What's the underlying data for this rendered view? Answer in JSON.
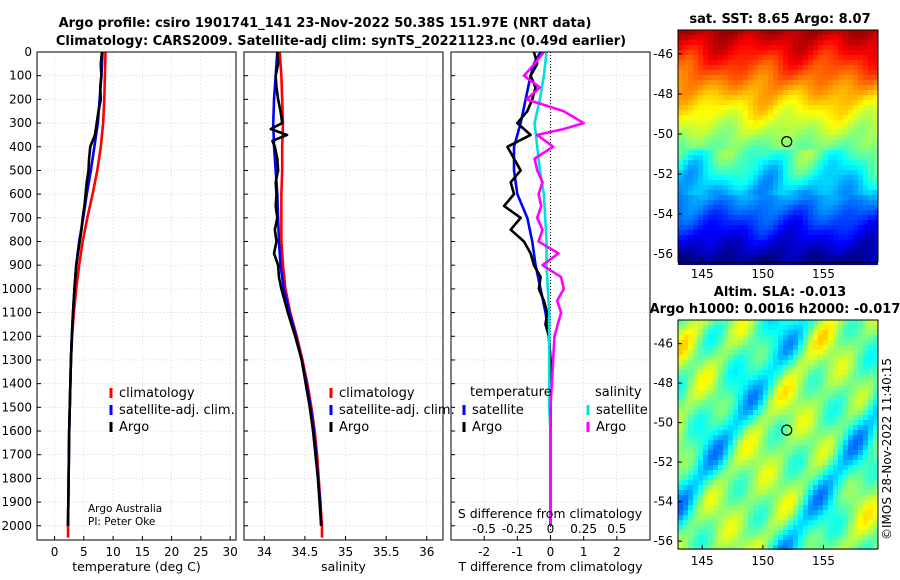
{
  "title_line1": "Argo profile: csiro 1901741_141 23-Nov-2022 50.38S 151.97E (NRT data)",
  "title_line2": "Climatology: CARS2009. Satellite-adj clim: synTS_20221123.nc (0.49d earlier)",
  "credit_org": "Argo Australia",
  "credit_pi": "PI: Peter Oke",
  "watermark": "©IMOS 28-Nov-2022 11:40:15",
  "colors": {
    "climatology": "#ff0000",
    "satellite": "#0000ff",
    "argo": "#000000",
    "sal_satellite": "#00e0e0",
    "sal_argo": "#ff00ff"
  },
  "chart_data": [
    {
      "id": "temperature",
      "type": "line",
      "xlabel": "temperature (deg C)",
      "ylabel": "",
      "xlim": [
        -3,
        31
      ],
      "ylim": [
        2060,
        0
      ],
      "x_ticks": [
        0,
        5,
        10,
        15,
        20,
        25,
        30
      ],
      "x_tick_labels": [
        "0",
        "5",
        "10",
        "15",
        "20",
        "25",
        "30"
      ],
      "y_ticks": [
        0,
        100,
        200,
        300,
        400,
        500,
        600,
        700,
        800,
        900,
        1000,
        1100,
        1200,
        1300,
        1400,
        1500,
        1600,
        1700,
        1800,
        1900,
        2000
      ],
      "y_tick_labels": [
        "0",
        "100",
        "200",
        "300",
        "400",
        "500",
        "600",
        "700",
        "800",
        "900",
        "1000",
        "1100",
        "1200",
        "1300",
        "1400",
        "1500",
        "1600",
        "1700",
        "1800",
        "1900",
        "2000"
      ],
      "legend": [
        "climatology",
        "satellite-adj. clim.",
        "Argo"
      ],
      "series": [
        {
          "name": "climatology",
          "color": "#ff0000",
          "depth": [
            0,
            100,
            200,
            300,
            400,
            500,
            600,
            700,
            800,
            900,
            1000,
            1100,
            1200,
            1300,
            1400,
            1500,
            1600,
            1700,
            1800,
            1900,
            2000,
            2050
          ],
          "values": [
            8.7,
            8.6,
            8.5,
            8.3,
            7.9,
            7.3,
            6.5,
            5.6,
            4.8,
            4.2,
            3.7,
            3.3,
            3.0,
            2.8,
            2.7,
            2.6,
            2.5,
            2.45,
            2.4,
            2.35,
            2.3,
            2.3
          ]
        },
        {
          "name": "satellite-adj. clim.",
          "color": "#0000ff",
          "depth": [
            0,
            100,
            200,
            300,
            400,
            500,
            600,
            700,
            800,
            900,
            1000,
            1100,
            1200,
            1300,
            1400,
            1500,
            1600,
            1700,
            1800,
            1900,
            2000
          ],
          "values": [
            8.2,
            8.0,
            7.7,
            7.4,
            6.8,
            6.2,
            5.5,
            4.9,
            4.2,
            3.7,
            3.4,
            3.15,
            2.95,
            2.8,
            2.7,
            2.6,
            2.5,
            2.45,
            2.4,
            2.35,
            2.3
          ]
        },
        {
          "name": "Argo",
          "color": "#000000",
          "depth": [
            0,
            50,
            100,
            150,
            200,
            250,
            300,
            350,
            400,
            450,
            500,
            550,
            600,
            650,
            700,
            750,
            800,
            850,
            900,
            950,
            1000,
            1100,
            1200,
            1300,
            1400,
            1500,
            1600,
            1700,
            1800,
            1900,
            2000
          ],
          "values": [
            8.1,
            7.9,
            8.0,
            7.8,
            7.9,
            7.5,
            7.2,
            6.9,
            6.1,
            5.9,
            5.8,
            5.5,
            5.3,
            5.1,
            4.8,
            4.6,
            4.3,
            4.0,
            3.7,
            3.55,
            3.4,
            3.15,
            2.95,
            2.8,
            2.7,
            2.6,
            2.5,
            2.45,
            2.4,
            2.35,
            2.3
          ]
        }
      ]
    },
    {
      "id": "salinity",
      "type": "line",
      "xlabel": "salinity",
      "xlim": [
        33.75,
        36.2
      ],
      "ylim": [
        2060,
        0
      ],
      "x_ticks": [
        34,
        34.5,
        35,
        35.5,
        36
      ],
      "x_tick_labels": [
        "34",
        "34.5",
        "35",
        "35.5",
        "36"
      ],
      "legend": [
        "climatology",
        "satellite-adj. clim.",
        "Argo"
      ],
      "series": [
        {
          "name": "climatology",
          "color": "#ff0000",
          "depth": [
            0,
            100,
            200,
            300,
            400,
            500,
            600,
            700,
            800,
            900,
            1000,
            1100,
            1200,
            1300,
            1400,
            1500,
            1600,
            1700,
            1800,
            1900,
            2000,
            2050
          ],
          "values": [
            34.19,
            34.21,
            34.22,
            34.23,
            34.22,
            34.22,
            34.21,
            34.21,
            34.21,
            34.23,
            34.26,
            34.32,
            34.4,
            34.47,
            34.53,
            34.58,
            34.62,
            34.65,
            34.67,
            34.69,
            34.71,
            34.71
          ]
        },
        {
          "name": "satellite-adj. clim.",
          "color": "#0000ff",
          "depth": [
            0,
            100,
            200,
            300,
            400,
            500,
            600,
            700,
            800,
            900,
            1000,
            1100,
            1200,
            1300,
            1400,
            1500,
            1600,
            1700,
            1800,
            1900,
            2000
          ],
          "values": [
            34.16,
            34.14,
            34.12,
            34.11,
            34.12,
            34.14,
            34.16,
            34.17,
            34.18,
            34.2,
            34.24,
            34.31,
            34.39,
            34.46,
            34.52,
            34.57,
            34.61,
            34.64,
            34.66,
            34.69,
            34.7
          ]
        },
        {
          "name": "Argo",
          "color": "#000000",
          "depth": [
            0,
            50,
            100,
            150,
            200,
            250,
            300,
            325,
            350,
            375,
            400,
            450,
            500,
            550,
            600,
            650,
            700,
            750,
            800,
            850,
            900,
            950,
            1000,
            1100,
            1200,
            1300,
            1400,
            1500,
            1600,
            1700,
            1800,
            1900,
            2000
          ],
          "values": [
            34.16,
            34.17,
            34.14,
            34.15,
            34.17,
            34.2,
            34.22,
            34.08,
            34.28,
            34.1,
            34.13,
            34.16,
            34.17,
            34.14,
            34.15,
            34.14,
            34.16,
            34.13,
            34.15,
            34.12,
            34.17,
            34.18,
            34.21,
            34.29,
            34.38,
            34.46,
            34.51,
            34.56,
            34.6,
            34.63,
            34.66,
            34.68,
            34.7
          ]
        }
      ]
    },
    {
      "id": "difference",
      "type": "line",
      "xlabel": "T difference from climatology",
      "xlabel_top": "S difference from climatology",
      "xlim": [
        -3,
        3
      ],
      "ylim": [
        2060,
        0
      ],
      "x_ticks": [
        -2,
        -1,
        0,
        1,
        2
      ],
      "x_tick_labels": [
        "-2",
        "-1",
        "0",
        "1",
        "2"
      ],
      "s_ticks": [
        -0.5,
        -0.25,
        0,
        0.25,
        0.5
      ],
      "s_tick_labels": [
        "-0.5",
        "-0.25",
        "0",
        "0.25",
        "0.5"
      ],
      "legend_titles": [
        "temperature",
        "salinity"
      ],
      "legend_temp": [
        "satellite",
        "Argo"
      ],
      "legend_sal": [
        "satellite",
        "Argo"
      ],
      "series": [
        {
          "name": "T satellite",
          "color": "#0000ff",
          "depth": [
            0,
            50,
            100,
            200,
            300,
            400,
            500,
            600,
            700,
            800,
            900,
            1000,
            1100,
            1200,
            1300,
            1400,
            1500,
            1600,
            1700,
            1800,
            1900,
            2000
          ],
          "values": [
            -0.3,
            -0.5,
            -0.6,
            -0.75,
            -0.9,
            -1.1,
            -1.1,
            -1.0,
            -0.7,
            -0.55,
            -0.45,
            -0.3,
            -0.15,
            -0.05,
            0,
            0,
            0,
            0,
            0,
            0,
            0,
            0
          ]
        },
        {
          "name": "T Argo",
          "color": "#000000",
          "depth": [
            0,
            50,
            100,
            150,
            200,
            250,
            300,
            350,
            400,
            450,
            500,
            550,
            600,
            650,
            700,
            750,
            800,
            850,
            900,
            950,
            1000,
            1050,
            1100,
            1150,
            1200,
            1300,
            1400,
            1500,
            1600,
            1700,
            1800,
            1900,
            2000
          ],
          "values": [
            -0.5,
            -0.4,
            -0.6,
            -0.45,
            -0.55,
            -0.7,
            -1.0,
            -0.6,
            -1.3,
            -1.1,
            -0.9,
            -1.2,
            -1.1,
            -1.4,
            -0.9,
            -1.2,
            -0.8,
            -0.6,
            -0.5,
            -0.3,
            -0.35,
            -0.2,
            -0.1,
            -0.15,
            -0.05,
            0,
            0,
            0,
            0,
            0,
            0,
            0,
            0
          ]
        },
        {
          "name": "S satellite",
          "color": "#00e0e0",
          "depth": [
            0,
            100,
            200,
            300,
            400,
            500,
            600,
            700,
            800,
            900,
            1000,
            1100,
            1200,
            1300,
            1400,
            1500,
            1600,
            1700,
            1800,
            1900,
            2000
          ],
          "values": [
            -0.03,
            -0.05,
            -0.08,
            -0.12,
            -0.1,
            -0.08,
            -0.05,
            -0.04,
            -0.03,
            -0.03,
            -0.02,
            -0.01,
            -0.01,
            -0.01,
            -0.01,
            -0.01,
            0,
            0,
            0,
            0,
            0
          ]
        },
        {
          "name": "S Argo",
          "color": "#ff00ff",
          "depth": [
            0,
            50,
            100,
            150,
            200,
            250,
            300,
            325,
            350,
            400,
            450,
            500,
            550,
            600,
            650,
            700,
            750,
            800,
            850,
            900,
            950,
            1000,
            1050,
            1100,
            1200,
            1300,
            1400,
            1500,
            1600,
            1700,
            1800,
            1900,
            2000
          ],
          "values": [
            -0.05,
            -0.12,
            -0.2,
            -0.08,
            -0.18,
            0.1,
            0.25,
            0.1,
            -0.1,
            0.02,
            -0.12,
            -0.1,
            -0.06,
            -0.09,
            -0.07,
            -0.1,
            -0.06,
            -0.09,
            0.06,
            -0.06,
            0.08,
            0.1,
            0.05,
            0.08,
            0.03,
            0.02,
            0.01,
            0.0,
            0.0,
            0.0,
            0.0,
            0.0,
            0.0
          ]
        }
      ]
    },
    {
      "id": "sst_map",
      "type": "heatmap",
      "title": "sat. SST: 8.65 Argo: 8.07",
      "x_ticks": [
        145,
        150,
        155
      ],
      "x_tick_labels": [
        "145",
        "150",
        "155"
      ],
      "y_ticks": [
        -46,
        -48,
        -50,
        -52,
        -54,
        -56
      ],
      "y_tick_labels": [
        "-46",
        "-48",
        "-50",
        "-52",
        "-54",
        "-56"
      ],
      "xlim": [
        143,
        159.5
      ],
      "ylim": [
        -56.4,
        -44.8
      ],
      "argo_position": {
        "lon": 151.97,
        "lat": -50.38
      }
    },
    {
      "id": "sla_map",
      "type": "heatmap",
      "title_line1": "Altim. SLA: -0.013",
      "title_line2": "Argo h1000: 0.0016 h2000: -0.017",
      "x_ticks": [
        145,
        150,
        155
      ],
      "x_tick_labels": [
        "145",
        "150",
        "155"
      ],
      "y_ticks": [
        -46,
        -48,
        -50,
        -52,
        -54,
        -56
      ],
      "y_tick_labels": [
        "-46",
        "-48",
        "-50",
        "-52",
        "-54",
        "-56"
      ],
      "xlim": [
        143,
        159.5
      ],
      "ylim": [
        -56.4,
        -44.8
      ],
      "argo_position": {
        "lon": 151.97,
        "lat": -50.38
      }
    }
  ]
}
